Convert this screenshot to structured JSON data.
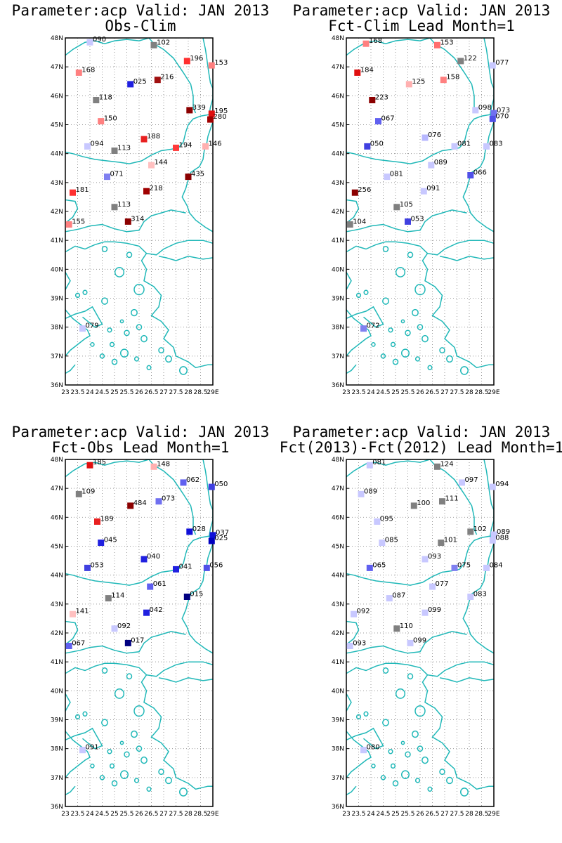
{
  "panels": [
    {
      "title1": "Parameter:acp Valid: JAN 2013",
      "title2": "Obs-Clim",
      "stations": [
        {
          "lon": 24.0,
          "lat": 47.85,
          "label": "090",
          "color": "#c8c8ff"
        },
        {
          "lon": 26.6,
          "lat": 47.75,
          "label": "102",
          "color": "#808080"
        },
        {
          "lon": 27.95,
          "lat": 47.2,
          "label": "196",
          "color": "#ff3030"
        },
        {
          "lon": 28.95,
          "lat": 47.05,
          "label": "153",
          "color": "#ff7f7f"
        },
        {
          "lon": 23.55,
          "lat": 46.8,
          "label": "168",
          "color": "#ff8080"
        },
        {
          "lon": 26.75,
          "lat": 46.55,
          "label": "216",
          "color": "#a01010"
        },
        {
          "lon": 25.65,
          "lat": 46.4,
          "label": "025",
          "color": "#2020e0"
        },
        {
          "lon": 24.25,
          "lat": 45.85,
          "label": "118",
          "color": "#808080"
        },
        {
          "lon": 28.05,
          "lat": 45.5,
          "label": "339",
          "color": "#8b0000"
        },
        {
          "lon": 28.95,
          "lat": 45.38,
          "label": "195",
          "color": "#e01010"
        },
        {
          "lon": 28.9,
          "lat": 45.18,
          "label": "280",
          "color": "#a00000"
        },
        {
          "lon": 24.45,
          "lat": 45.12,
          "label": "150",
          "color": "#ff8080"
        },
        {
          "lon": 26.2,
          "lat": 44.5,
          "label": "188",
          "color": "#e82020"
        },
        {
          "lon": 23.9,
          "lat": 44.25,
          "label": "094",
          "color": "#c8c8ff"
        },
        {
          "lon": 25.0,
          "lat": 44.1,
          "label": "113",
          "color": "#808080"
        },
        {
          "lon": 27.5,
          "lat": 44.2,
          "label": "194",
          "color": "#ff3a3a"
        },
        {
          "lon": 28.7,
          "lat": 44.25,
          "label": "146",
          "color": "#ffb0b0"
        },
        {
          "lon": 26.5,
          "lat": 43.6,
          "label": "144",
          "color": "#ffc0c0"
        },
        {
          "lon": 24.7,
          "lat": 43.2,
          "label": "071",
          "color": "#8080f0"
        },
        {
          "lon": 28.0,
          "lat": 43.2,
          "label": "435",
          "color": "#8b0000"
        },
        {
          "lon": 23.3,
          "lat": 42.65,
          "label": "181",
          "color": "#ff3030"
        },
        {
          "lon": 26.3,
          "lat": 42.7,
          "label": "218",
          "color": "#a00000"
        },
        {
          "lon": 25.0,
          "lat": 42.15,
          "label": "113",
          "color": "#808080"
        },
        {
          "lon": 25.55,
          "lat": 41.65,
          "label": "314",
          "color": "#8b0000"
        },
        {
          "lon": 23.15,
          "lat": 41.55,
          "label": "155",
          "color": "#ff8080"
        },
        {
          "lon": 23.7,
          "lat": 37.95,
          "label": "079",
          "color": "#c8c8ff"
        }
      ]
    },
    {
      "title1": "Parameter:acp Valid: JAN 2013",
      "title2": "Fct-Clim Lead Month=1",
      "stations": [
        {
          "lon": 23.8,
          "lat": 47.8,
          "label": "168",
          "color": "#ff8080"
        },
        {
          "lon": 26.7,
          "lat": 47.75,
          "label": "153",
          "color": "#ff7070"
        },
        {
          "lon": 27.65,
          "lat": 47.2,
          "label": "122",
          "color": "#808080"
        },
        {
          "lon": 28.95,
          "lat": 47.05,
          "label": "077",
          "color": "#c8c8ff"
        },
        {
          "lon": 23.45,
          "lat": 46.8,
          "label": "184",
          "color": "#e01010"
        },
        {
          "lon": 26.95,
          "lat": 46.55,
          "label": "158",
          "color": "#ff8080"
        },
        {
          "lon": 25.55,
          "lat": 46.4,
          "label": "125",
          "color": "#ffb0b0"
        },
        {
          "lon": 24.05,
          "lat": 45.85,
          "label": "223",
          "color": "#8b0000"
        },
        {
          "lon": 28.25,
          "lat": 45.5,
          "label": "098",
          "color": "#c8c8ff"
        },
        {
          "lon": 29.0,
          "lat": 45.4,
          "label": "073",
          "color": "#7070f0"
        },
        {
          "lon": 28.95,
          "lat": 45.2,
          "label": "070",
          "color": "#5050e8"
        },
        {
          "lon": 24.3,
          "lat": 45.12,
          "label": "067",
          "color": "#6060f0"
        },
        {
          "lon": 26.2,
          "lat": 44.55,
          "label": "076",
          "color": "#b8b8ff"
        },
        {
          "lon": 23.85,
          "lat": 44.25,
          "label": "050",
          "color": "#4040e0"
        },
        {
          "lon": 27.4,
          "lat": 44.25,
          "label": "081",
          "color": "#c8c8ff"
        },
        {
          "lon": 28.7,
          "lat": 44.25,
          "label": "083",
          "color": "#c8c8ff"
        },
        {
          "lon": 26.45,
          "lat": 43.6,
          "label": "089",
          "color": "#c8c8ff"
        },
        {
          "lon": 24.65,
          "lat": 43.2,
          "label": "081",
          "color": "#c8c8ff"
        },
        {
          "lon": 28.05,
          "lat": 43.25,
          "label": "066",
          "color": "#5050e8"
        },
        {
          "lon": 23.35,
          "lat": 42.65,
          "label": "256",
          "color": "#8b0000"
        },
        {
          "lon": 26.15,
          "lat": 42.7,
          "label": "091",
          "color": "#c8c8ff"
        },
        {
          "lon": 25.05,
          "lat": 42.15,
          "label": "105",
          "color": "#808080"
        },
        {
          "lon": 25.5,
          "lat": 41.65,
          "label": "053",
          "color": "#4040e0"
        },
        {
          "lon": 23.15,
          "lat": 41.55,
          "label": "104",
          "color": "#808080"
        },
        {
          "lon": 23.7,
          "lat": 37.95,
          "label": "072",
          "color": "#8080f0"
        }
      ]
    },
    {
      "title1": "Parameter:acp Valid: JAN 2013",
      "title2": "Fct-Obs Lead Month=1",
      "stations": [
        {
          "lon": 24.0,
          "lat": 47.8,
          "label": "185",
          "color": "#e01010"
        },
        {
          "lon": 26.6,
          "lat": 47.75,
          "label": "148",
          "color": "#ffb0b0"
        },
        {
          "lon": 27.8,
          "lat": 47.2,
          "label": "062",
          "color": "#6060f0"
        },
        {
          "lon": 28.95,
          "lat": 47.05,
          "label": "050",
          "color": "#4040e0"
        },
        {
          "lon": 23.55,
          "lat": 46.8,
          "label": "109",
          "color": "#808080"
        },
        {
          "lon": 26.8,
          "lat": 46.55,
          "label": "073",
          "color": "#7070f0"
        },
        {
          "lon": 25.65,
          "lat": 46.4,
          "label": "484",
          "color": "#8b0000"
        },
        {
          "lon": 24.3,
          "lat": 45.85,
          "label": "189",
          "color": "#e82020"
        },
        {
          "lon": 28.05,
          "lat": 45.5,
          "label": "028",
          "color": "#1010d8"
        },
        {
          "lon": 29.0,
          "lat": 45.38,
          "label": "037",
          "color": "#1010d8"
        },
        {
          "lon": 28.95,
          "lat": 45.18,
          "label": "025",
          "color": "#0000c0"
        },
        {
          "lon": 24.45,
          "lat": 45.12,
          "label": "045",
          "color": "#2020e0"
        },
        {
          "lon": 26.2,
          "lat": 44.55,
          "label": "040",
          "color": "#2020e0"
        },
        {
          "lon": 23.9,
          "lat": 44.25,
          "label": "053",
          "color": "#4040e0"
        },
        {
          "lon": 27.5,
          "lat": 44.2,
          "label": "041",
          "color": "#2020e0"
        },
        {
          "lon": 28.75,
          "lat": 44.25,
          "label": "056",
          "color": "#5050e8"
        },
        {
          "lon": 26.45,
          "lat": 43.6,
          "label": "061",
          "color": "#6060f0"
        },
        {
          "lon": 24.75,
          "lat": 43.2,
          "label": "114",
          "color": "#808080"
        },
        {
          "lon": 27.95,
          "lat": 43.25,
          "label": "015",
          "color": "#000080"
        },
        {
          "lon": 23.3,
          "lat": 42.65,
          "label": "141",
          "color": "#ffc0c0"
        },
        {
          "lon": 26.3,
          "lat": 42.7,
          "label": "042",
          "color": "#2020e0"
        },
        {
          "lon": 25.0,
          "lat": 42.15,
          "label": "092",
          "color": "#c8c8ff"
        },
        {
          "lon": 25.55,
          "lat": 41.65,
          "label": "017",
          "color": "#000080"
        },
        {
          "lon": 23.15,
          "lat": 41.55,
          "label": "067",
          "color": "#6060f0"
        },
        {
          "lon": 23.7,
          "lat": 37.95,
          "label": "091",
          "color": "#c8c8ff"
        }
      ]
    },
    {
      "title1": "Parameter:acp Valid: JAN 2013",
      "title2": "Fct(2013)-Fct(2012) Lead Month=1",
      "stations": [
        {
          "lon": 23.95,
          "lat": 47.8,
          "label": "081",
          "color": "#c8c8ff"
        },
        {
          "lon": 26.7,
          "lat": 47.75,
          "label": "124",
          "color": "#808080"
        },
        {
          "lon": 27.7,
          "lat": 47.2,
          "label": "097",
          "color": "#c8c8ff"
        },
        {
          "lon": 28.95,
          "lat": 47.05,
          "label": "094",
          "color": "#c8c8ff"
        },
        {
          "lon": 23.6,
          "lat": 46.8,
          "label": "089",
          "color": "#c8c8ff"
        },
        {
          "lon": 26.9,
          "lat": 46.55,
          "label": "111",
          "color": "#808080"
        },
        {
          "lon": 25.75,
          "lat": 46.4,
          "label": "100",
          "color": "#808080"
        },
        {
          "lon": 24.25,
          "lat": 45.85,
          "label": "095",
          "color": "#c8c8ff"
        },
        {
          "lon": 28.05,
          "lat": 45.5,
          "label": "102",
          "color": "#808080"
        },
        {
          "lon": 29.0,
          "lat": 45.4,
          "label": "089",
          "color": "#c8c8ff"
        },
        {
          "lon": 28.95,
          "lat": 45.2,
          "label": "088",
          "color": "#c8c8ff"
        },
        {
          "lon": 24.45,
          "lat": 45.12,
          "label": "085",
          "color": "#c8c8ff"
        },
        {
          "lon": 26.85,
          "lat": 45.12,
          "label": "101",
          "color": "#808080"
        },
        {
          "lon": 26.2,
          "lat": 44.55,
          "label": "093",
          "color": "#c8c8ff"
        },
        {
          "lon": 23.95,
          "lat": 44.25,
          "label": "065",
          "color": "#6060f0"
        },
        {
          "lon": 27.4,
          "lat": 44.25,
          "label": "075",
          "color": "#8080f0"
        },
        {
          "lon": 28.7,
          "lat": 44.25,
          "label": "084",
          "color": "#c8c8ff"
        },
        {
          "lon": 26.5,
          "lat": 43.6,
          "label": "077",
          "color": "#c8c8ff"
        },
        {
          "lon": 24.75,
          "lat": 43.2,
          "label": "087",
          "color": "#c8c8ff"
        },
        {
          "lon": 28.05,
          "lat": 43.25,
          "label": "083",
          "color": "#c8c8ff"
        },
        {
          "lon": 23.3,
          "lat": 42.65,
          "label": "092",
          "color": "#c8c8ff"
        },
        {
          "lon": 26.2,
          "lat": 42.7,
          "label": "099",
          "color": "#c8c8ff"
        },
        {
          "lon": 25.05,
          "lat": 42.15,
          "label": "110",
          "color": "#808080"
        },
        {
          "lon": 25.6,
          "lat": 41.65,
          "label": "099",
          "color": "#c8c8ff"
        },
        {
          "lon": 23.15,
          "lat": 41.55,
          "label": "093",
          "color": "#c8c8ff"
        },
        {
          "lon": 23.7,
          "lat": 37.95,
          "label": "080",
          "color": "#c8c8ff"
        }
      ]
    }
  ],
  "axes": {
    "lon_ticks": [
      "23E",
      "23.5E",
      "24E",
      "24.5E",
      "25E",
      "25.5E",
      "26E",
      "26.5E",
      "27E",
      "27.5E",
      "28E",
      "28.5E",
      "29E"
    ],
    "lon_tick_labels": [
      "23",
      "23.5",
      "24",
      "24.5",
      "25",
      "25.5",
      "26",
      "26.5",
      "27",
      "27.5",
      "28",
      "28.5",
      "29E"
    ],
    "lat_ticks": [
      "36N",
      "37N",
      "38N",
      "39N",
      "40N",
      "41N",
      "42N",
      "43N",
      "44N",
      "45N",
      "46N",
      "47N",
      "48N"
    ],
    "lon_range": [
      23,
      29
    ],
    "lat_range": [
      36,
      48
    ]
  },
  "colors": {
    "coastline": "#20b8b8",
    "grid": "#9a9a9a"
  }
}
